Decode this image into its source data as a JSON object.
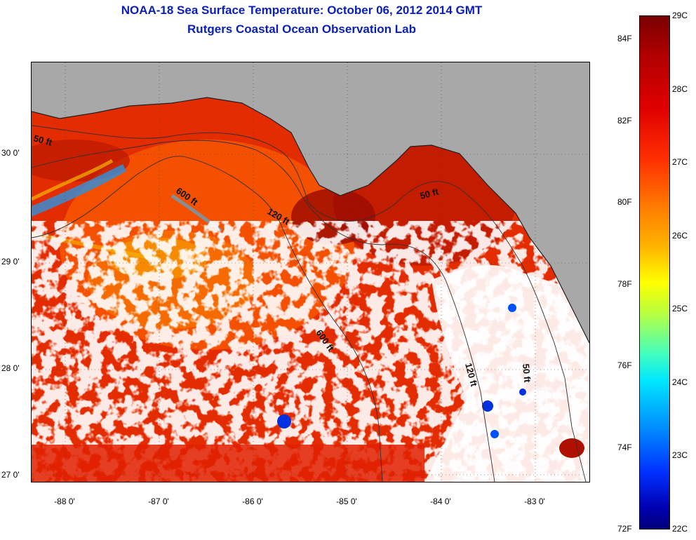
{
  "title_line1": "NOAA-18 Sea Surface Temperature:  October 06, 2012 2014 GMT",
  "title_line2": "Rutgers Coastal Ocean Observation Lab",
  "map": {
    "lat_labels": [
      "30 0'",
      "29 0'",
      "28 0'",
      "27 0'"
    ],
    "lon_labels": [
      "-88 0'",
      "-87 0'",
      "-86 0'",
      "-85 0'",
      "-84 0'",
      "-83 0'"
    ],
    "contour_labels": [
      "50 ft",
      "600 ft",
      "120 ft",
      "50 ft",
      "600 ft",
      "120 ft",
      "50 ft"
    ],
    "colors": {
      "land": "#a8a8a8",
      "cloud": "#ffffff",
      "warm": "#e02000",
      "hot": "#a00000",
      "cool": "#0040ff"
    }
  },
  "colorbar": {
    "celsius": [
      "29C",
      "28C",
      "27C",
      "26C",
      "25C",
      "24C",
      "23C",
      "22C"
    ],
    "fahrenheit": [
      "84F",
      "82F",
      "80F",
      "78F",
      "76F",
      "74F",
      "72F"
    ]
  }
}
